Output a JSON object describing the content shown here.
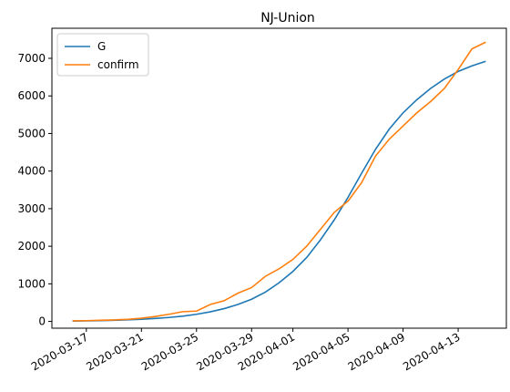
{
  "chart_data": {
    "type": "line",
    "title": "NJ-Union",
    "xlabel": "",
    "ylabel": "",
    "x": [
      "2020-03-16",
      "2020-03-17",
      "2020-03-18",
      "2020-03-19",
      "2020-03-20",
      "2020-03-21",
      "2020-03-22",
      "2020-03-23",
      "2020-03-24",
      "2020-03-25",
      "2020-03-26",
      "2020-03-27",
      "2020-03-28",
      "2020-03-29",
      "2020-03-30",
      "2020-03-31",
      "2020-04-01",
      "2020-04-02",
      "2020-04-03",
      "2020-04-04",
      "2020-04-05",
      "2020-04-06",
      "2020-04-07",
      "2020-04-08",
      "2020-04-09",
      "2020-04-10",
      "2020-04-11",
      "2020-04-12",
      "2020-04-13",
      "2020-04-14",
      "2020-04-15"
    ],
    "x_ticks": [
      "2020-03-17",
      "2020-03-21",
      "2020-03-25",
      "2020-03-29",
      "2020-04-01",
      "2020-04-05",
      "2020-04-09",
      "2020-04-13"
    ],
    "ylim": [
      -180,
      7800
    ],
    "y_ticks": [
      0,
      1000,
      2000,
      3000,
      4000,
      5000,
      6000,
      7000
    ],
    "grid": false,
    "legend_position": "upper-left",
    "series": [
      {
        "name": "G",
        "color": "#1f77b4",
        "values": [
          10,
          15,
          22,
          30,
          42,
          58,
          78,
          105,
          140,
          190,
          255,
          340,
          450,
          590,
          780,
          1030,
          1330,
          1700,
          2170,
          2700,
          3300,
          3950,
          4580,
          5120,
          5550,
          5900,
          6200,
          6450,
          6650,
          6800,
          6920
        ]
      },
      {
        "name": "confirm",
        "color": "#ff7f0e",
        "values": [
          15,
          20,
          30,
          40,
          55,
          85,
          130,
          190,
          260,
          275,
          450,
          550,
          750,
          900,
          1200,
          1400,
          1650,
          2000,
          2450,
          2900,
          3200,
          3700,
          4400,
          4850,
          5200,
          5550,
          5850,
          6200,
          6700,
          7250,
          7430
        ]
      }
    ]
  }
}
